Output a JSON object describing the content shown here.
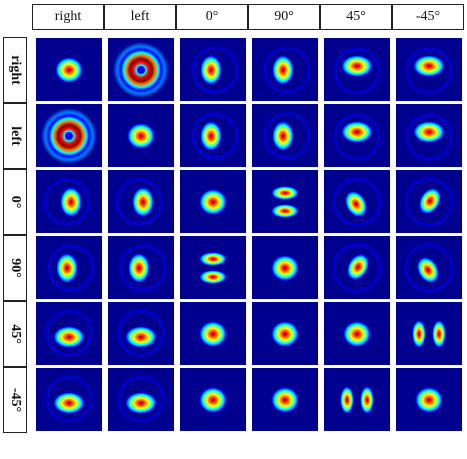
{
  "columns": [
    "right",
    "left",
    "0°",
    "90°",
    "45°",
    "-45°"
  ],
  "rows": [
    "right",
    "left",
    "0°",
    "90°",
    "45°",
    "-45°"
  ],
  "colors": {
    "background": "#00008f",
    "jet": [
      "#00008f",
      "#0000ff",
      "#0080ff",
      "#00ffff",
      "#80ff80",
      "#ffff00",
      "#ff8000",
      "#ff0000",
      "#800000"
    ]
  },
  "patterns": [
    [
      "gaussian",
      "donut",
      "lobe-left",
      "lobe-left",
      "lobe-up",
      "lobe-up"
    ],
    [
      "donut",
      "gaussian",
      "lobe-left",
      "lobe-left",
      "lobe-up",
      "lobe-up"
    ],
    [
      "lobe-right",
      "lobe-right",
      "gaussian",
      "two-lobe-vertical",
      "tilted-right",
      "tilted-left"
    ],
    [
      "lobe-left",
      "lobe-left",
      "two-lobe-vertical",
      "gaussian",
      "tilted-left",
      "tilted-right"
    ],
    [
      "lobe-down",
      "lobe-down",
      "gaussian",
      "gaussian",
      "gaussian",
      "two-lobe-horizontal"
    ],
    [
      "lobe-down",
      "lobe-down",
      "gaussian",
      "gaussian",
      "two-lobe-horizontal",
      "gaussian"
    ]
  ]
}
